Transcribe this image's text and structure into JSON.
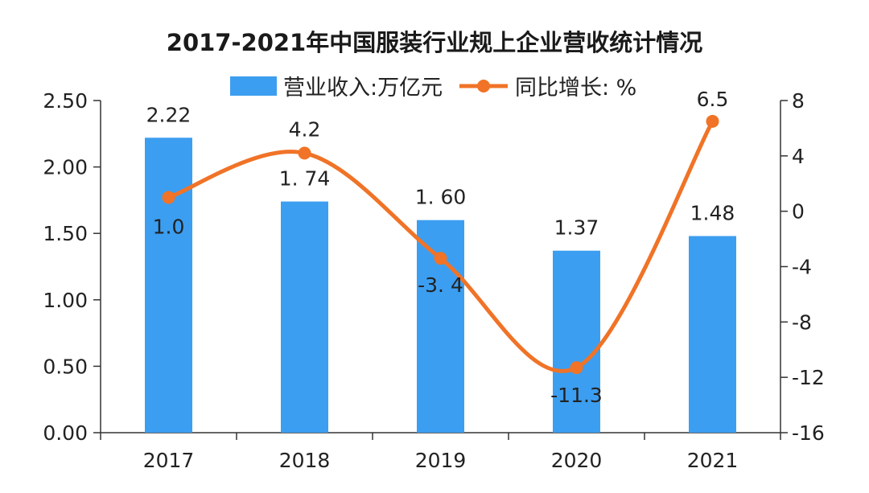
{
  "chart_data": {
    "type": "bar+line",
    "title": "2017-2021年中国服装行业规上企业营收统计情况",
    "categories": [
      "2017",
      "2018",
      "2019",
      "2020",
      "2021"
    ],
    "series": [
      {
        "name": "营业收入:万亿元",
        "type": "bar",
        "axis": "left",
        "values": [
          2.22,
          1.74,
          1.6,
          1.37,
          1.48
        ],
        "labels": [
          "2.22",
          "1. 74",
          "1. 60",
          "1.37",
          "1.48"
        ],
        "color": "#3c9ef0"
      },
      {
        "name": "同比增长: %",
        "type": "line",
        "axis": "right",
        "values": [
          1.0,
          4.2,
          -3.4,
          -11.3,
          6.5
        ],
        "labels": [
          "1.0",
          "4.2",
          "-3. 4",
          "-11.3",
          "6.5"
        ],
        "color": "#f07327"
      }
    ],
    "left_axis": {
      "ylim": [
        0,
        2.5
      ],
      "ticks": [
        "0.00",
        "0.50",
        "1.00",
        "1.50",
        "2.00",
        "2.50"
      ],
      "tick_values": [
        0,
        0.5,
        1.0,
        1.5,
        2.0,
        2.5
      ]
    },
    "right_axis": {
      "ylim": [
        -16,
        8
      ],
      "ticks": [
        "-16",
        "-12",
        "-8",
        "-4",
        "0",
        "4",
        "8"
      ],
      "tick_values": [
        -16,
        -12,
        -8,
        -4,
        0,
        4,
        8
      ]
    },
    "grid": false,
    "legend_position": "top-center"
  }
}
